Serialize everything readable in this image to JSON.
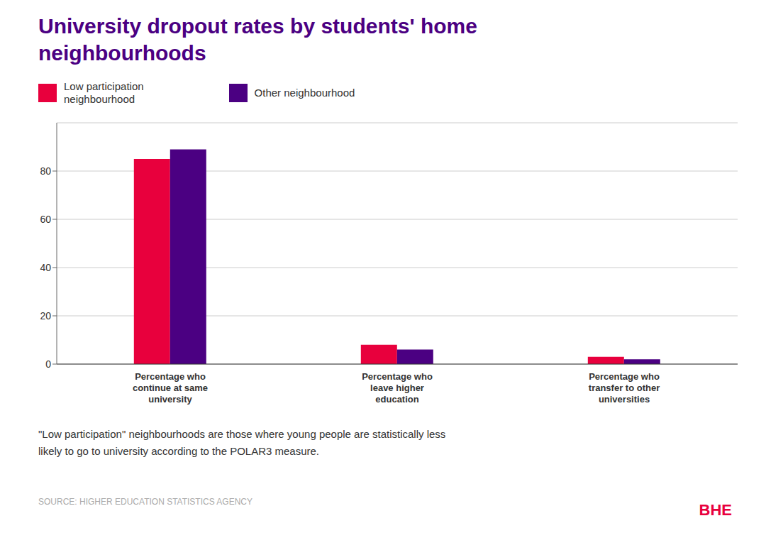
{
  "chart_data": {
    "type": "bar",
    "title": "University dropout rates by students' home\nneighbourhoods",
    "categories": [
      "Percentage who\ncontinue at same\nuniversity",
      "Percentage who\nleave higher\neducation",
      "Percentage who\ntransfer to other\nuniversities"
    ],
    "series": [
      {
        "name": "Low participation\nneighbourhood",
        "color": "#E8003D",
        "values": [
          85,
          8,
          3
        ]
      },
      {
        "name": "Other neighbourhood",
        "color": "#4B0082",
        "values": [
          89,
          6,
          2
        ]
      }
    ],
    "ylim": [
      0,
      100
    ],
    "yticks": [
      0,
      20,
      40,
      60,
      80
    ],
    "grid": true,
    "legend": "top left",
    "annotations": [
      {
        "text": "\"Low participation\" neighbourhoods are those where young people are statistically less\nlikely to go to university according to the POLAR3 measure."
      },
      {
        "text": "SOURCE: HIGHER EDUCATION STATISTICS AGENCY"
      },
      {
        "text": "BHE",
        "color": "#E8003D"
      }
    ]
  }
}
